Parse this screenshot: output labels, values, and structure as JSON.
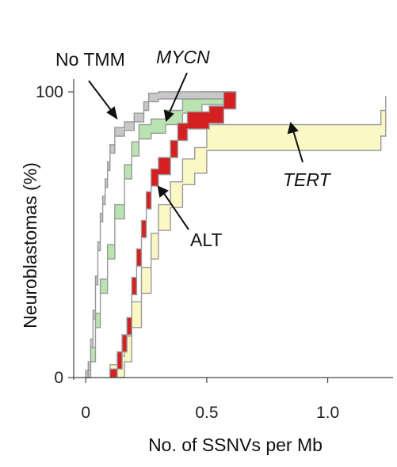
{
  "chart_data": {
    "type": "step-band",
    "xlabel": "No. of SSNVs per Mb",
    "ylabel": "Neuroblastomas (%)",
    "xlim": [
      -0.05,
      1.27
    ],
    "ylim": [
      0,
      100
    ],
    "x_ticks": [
      {
        "value": 0,
        "label": "0"
      },
      {
        "value": 0.5,
        "label": "0.5"
      },
      {
        "value": 1.0,
        "label": "1.0"
      }
    ],
    "y_ticks": [
      {
        "value": 0,
        "label": "0"
      },
      {
        "value": 100,
        "label": "100"
      }
    ],
    "grid": false,
    "legend": "none (direct annotations)",
    "series": [
      {
        "name": "No TMM",
        "italic": false,
        "color": "#c8c8c8",
        "points": [
          [
            0.0,
            0
          ],
          [
            0.01,
            4
          ],
          [
            0.02,
            12
          ],
          [
            0.03,
            22
          ],
          [
            0.04,
            34
          ],
          [
            0.05,
            46
          ],
          [
            0.06,
            56
          ],
          [
            0.07,
            62
          ],
          [
            0.08,
            68
          ],
          [
            0.09,
            74
          ],
          [
            0.1,
            80
          ],
          [
            0.12,
            86
          ],
          [
            0.16,
            88
          ],
          [
            0.2,
            91
          ],
          [
            0.24,
            95
          ],
          [
            0.26,
            98
          ],
          [
            0.3,
            99
          ],
          [
            0.62,
            100
          ]
        ],
        "band": 3
      },
      {
        "name": "MYCN",
        "italic": true,
        "color": "#b9e3b0",
        "points": [
          [
            0.0,
            0
          ],
          [
            0.02,
            8
          ],
          [
            0.04,
            20
          ],
          [
            0.06,
            32
          ],
          [
            0.09,
            44
          ],
          [
            0.12,
            58
          ],
          [
            0.16,
            72
          ],
          [
            0.19,
            80
          ],
          [
            0.22,
            86
          ],
          [
            0.27,
            88
          ],
          [
            0.33,
            91
          ],
          [
            0.4,
            95
          ],
          [
            0.48,
            98
          ],
          [
            0.6,
            100
          ]
        ],
        "band": 5
      },
      {
        "name": "ALT",
        "italic": false,
        "color": "#d42020",
        "points": [
          [
            0.1,
            0
          ],
          [
            0.13,
            6
          ],
          [
            0.15,
            12
          ],
          [
            0.17,
            18
          ],
          [
            0.19,
            32
          ],
          [
            0.21,
            42
          ],
          [
            0.23,
            52
          ],
          [
            0.25,
            62
          ],
          [
            0.27,
            70
          ],
          [
            0.3,
            74
          ],
          [
            0.35,
            80
          ],
          [
            0.38,
            86
          ],
          [
            0.42,
            90
          ],
          [
            0.51,
            92
          ],
          [
            0.57,
            97
          ],
          [
            0.62,
            100
          ]
        ],
        "band": 6
      },
      {
        "name": "TERT",
        "italic": true,
        "color": "#fbf8c5",
        "points": [
          [
            0.1,
            0
          ],
          [
            0.13,
            3
          ],
          [
            0.16,
            10
          ],
          [
            0.19,
            22
          ],
          [
            0.23,
            34
          ],
          [
            0.27,
            46
          ],
          [
            0.3,
            56
          ],
          [
            0.35,
            64
          ],
          [
            0.4,
            72
          ],
          [
            0.45,
            76
          ],
          [
            0.5,
            84
          ],
          [
            1.22,
            89
          ],
          [
            1.24,
            94
          ]
        ],
        "band": 9
      }
    ],
    "annotations": [
      {
        "text": "No TMM",
        "italic": false
      },
      {
        "text": "MYCN",
        "italic": true
      },
      {
        "text": "TERT",
        "italic": true
      },
      {
        "text": "ALT",
        "italic": false
      }
    ]
  }
}
